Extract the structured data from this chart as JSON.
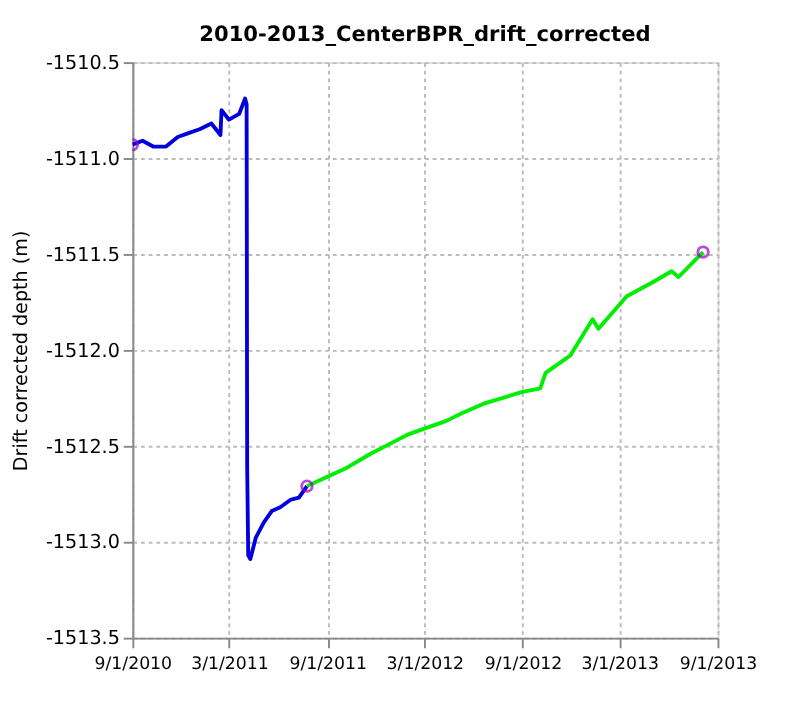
{
  "chart_data": {
    "type": "line",
    "title": "2010-2013_CenterBPR_drift_corrected",
    "ylabel": "Drift corrected depth (m)",
    "xlim": [
      "2010-09-01",
      "2013-09-01"
    ],
    "xticks": [
      {
        "value": "2010-09-01",
        "label": "9/1/2010"
      },
      {
        "value": "2011-03-01",
        "label": "3/1/2011"
      },
      {
        "value": "2011-09-01",
        "label": "9/1/2011"
      },
      {
        "value": "2012-03-01",
        "label": "3/1/2012"
      },
      {
        "value": "2012-09-01",
        "label": "9/1/2012"
      },
      {
        "value": "2013-03-01",
        "label": "3/1/2013"
      },
      {
        "value": "2013-09-01",
        "label": "9/1/2013"
      }
    ],
    "ylim": [
      -1513.5,
      -1510.5
    ],
    "yticks": [
      {
        "value": -1513.5,
        "label": "-1513.5"
      },
      {
        "value": -1513,
        "label": "-1513.0"
      },
      {
        "value": -1512.5,
        "label": "-1512.5"
      },
      {
        "value": -1512,
        "label": "-1512.0"
      },
      {
        "value": -1511.5,
        "label": "-1511.5"
      },
      {
        "value": -1511,
        "label": "-1511.0"
      },
      {
        "value": -1510.5,
        "label": "-1510.5"
      }
    ],
    "grid": true,
    "line_style": "solid",
    "series": [
      {
        "color": "#0000dd",
        "x": [
          "2010-09-01",
          "2010-09-20",
          "2010-10-10",
          "2010-11-03",
          "2010-11-25",
          "2010-12-15",
          "2011-01-05",
          "2011-01-27",
          "2011-02-13",
          "2011-02-15",
          "2011-03-01",
          "2011-03-20",
          "2011-03-31",
          "2011-04-03",
          "2011-04-04",
          "2011-04-06",
          "2011-04-10",
          "2011-04-20",
          "2011-05-05",
          "2011-05-20",
          "2011-06-05",
          "2011-06-25",
          "2011-07-10",
          "2011-07-25"
        ],
        "values": [
          -1510.93,
          -1510.91,
          -1510.94,
          -1510.94,
          -1510.89,
          -1510.87,
          -1510.85,
          -1510.82,
          -1510.88,
          -1510.75,
          -1510.8,
          -1510.77,
          -1510.69,
          -1510.72,
          -1512.6,
          -1513.07,
          -1513.09,
          -1512.98,
          -1512.9,
          -1512.84,
          -1512.82,
          -1512.78,
          -1512.77,
          -1512.71
        ]
      },
      {
        "color": "#00ee00",
        "x": [
          "2011-07-25",
          "2011-08-25",
          "2011-10-04",
          "2011-11-22",
          "2011-12-20",
          "2012-01-31",
          "2012-03-01",
          "2012-04-11",
          "2012-05-10",
          "2012-06-20",
          "2012-08-30",
          "2012-10-04",
          "2012-10-14",
          "2012-11-29",
          "2013-01-10",
          "2013-01-21",
          "2013-03-15",
          "2013-05-01",
          "2013-06-07",
          "2013-06-20",
          "2013-08-05"
        ],
        "values": [
          -1512.71,
          -1512.67,
          -1512.62,
          -1512.54,
          -1512.5,
          -1512.44,
          -1512.41,
          -1512.37,
          -1512.33,
          -1512.28,
          -1512.22,
          -1512.2,
          -1512.12,
          -1512.03,
          -1511.84,
          -1511.89,
          -1511.72,
          -1511.65,
          -1511.59,
          -1511.62,
          -1511.49
        ]
      },
      {
        "type": "scatter",
        "marker": "circle",
        "color": "#9900cc",
        "x": [
          "2010-09-01",
          "2011-07-25",
          "2013-08-05"
        ],
        "values": [
          -1510.93,
          -1512.71,
          -1511.49
        ]
      }
    ]
  }
}
